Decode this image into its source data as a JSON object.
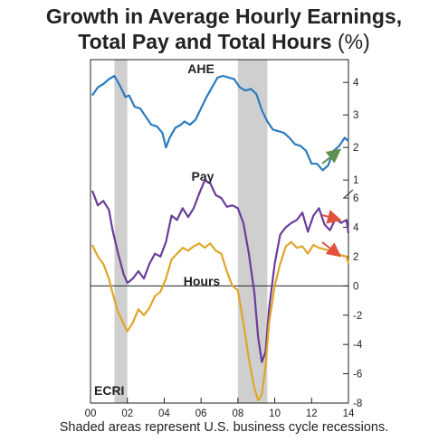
{
  "title_line1": "Growth in Average Hourly Earnings,",
  "title_line2": "Total Pay and Total Hours",
  "title_unit": "(%)",
  "footnote": "Shaded areas represent U.S. business cycle recessions.",
  "logo": "ECRI",
  "colors": {
    "ahe": "#2b7bbf",
    "pay": "#6a3d9a",
    "hours": "#e0a528",
    "recession": "#cfcfcf",
    "arrow_up": "#5f8f4e",
    "arrow_down": "#e2523b"
  },
  "chart_data": {
    "type": "line",
    "x_tick_labels": [
      "00",
      "02",
      "04",
      "06",
      "08",
      "10",
      "12",
      "14"
    ],
    "x_range": [
      2000,
      2014
    ],
    "recessions": [
      [
        2001.2,
        2001.9
      ],
      [
        2007.9,
        2009.5
      ]
    ],
    "panels": [
      {
        "name": "upper",
        "yrange": [
          0.7,
          4.7
        ],
        "yticks": [
          1,
          2,
          3,
          4
        ],
        "series": [
          {
            "name": "AHE",
            "color_key": "ahe",
            "x": [
              2000.0,
              2000.3,
              2000.6,
              2000.9,
              2001.2,
              2001.5,
              2001.8,
              2002.0,
              2002.3,
              2002.6,
              2002.9,
              2003.2,
              2003.5,
              2003.8,
              2004.0,
              2004.2,
              2004.5,
              2004.8,
              2005.0,
              2005.3,
              2005.6,
              2005.9,
              2006.2,
              2006.5,
              2006.8,
              2007.1,
              2007.4,
              2007.7,
              2008.0,
              2008.3,
              2008.6,
              2008.9,
              2009.2,
              2009.5,
              2009.8,
              2010.1,
              2010.4,
              2010.7,
              2011.0,
              2011.3,
              2011.6,
              2011.9,
              2012.2,
              2012.5,
              2012.8,
              2013.1,
              2013.4,
              2013.7,
              2013.9
            ],
            "y": [
              3.6,
              3.85,
              3.95,
              4.1,
              4.2,
              3.9,
              3.55,
              3.6,
              3.25,
              3.2,
              2.95,
              2.7,
              2.65,
              2.45,
              2.0,
              2.3,
              2.6,
              2.7,
              2.8,
              2.7,
              2.85,
              3.2,
              3.55,
              3.85,
              4.15,
              4.2,
              4.15,
              4.1,
              3.85,
              3.75,
              3.8,
              3.65,
              3.15,
              2.8,
              2.55,
              2.5,
              2.45,
              2.3,
              2.1,
              2.05,
              1.9,
              1.5,
              1.5,
              1.3,
              1.45,
              1.9,
              2.05,
              2.3,
              2.2
            ]
          }
        ]
      },
      {
        "name": "lower",
        "yrange": [
          -8,
          6.5
        ],
        "yticks": [
          -8,
          -6,
          -4,
          -2,
          0,
          2,
          4,
          6
        ],
        "series": [
          {
            "name": "Pay",
            "color_key": "pay",
            "x": [
              2000.0,
              2000.3,
              2000.6,
              2000.9,
              2001.1,
              2001.4,
              2001.7,
              2001.9,
              2002.2,
              2002.5,
              2002.8,
              2003.1,
              2003.4,
              2003.7,
              2004.0,
              2004.3,
              2004.6,
              2004.9,
              2005.2,
              2005.5,
              2005.8,
              2006.1,
              2006.4,
              2006.7,
              2007.0,
              2007.3,
              2007.6,
              2007.9,
              2008.2,
              2008.5,
              2008.8,
              2009.0,
              2009.2,
              2009.4,
              2009.6,
              2009.9,
              2010.2,
              2010.5,
              2010.8,
              2011.1,
              2011.4,
              2011.7,
              2012.0,
              2012.3,
              2012.6,
              2012.9,
              2013.2,
              2013.5,
              2013.8,
              2013.9
            ],
            "y": [
              6.5,
              5.5,
              5.8,
              5.2,
              3.8,
              2.2,
              0.8,
              0.2,
              0.5,
              1.0,
              0.5,
              1.5,
              2.2,
              2.0,
              3.0,
              4.8,
              4.5,
              5.3,
              4.7,
              5.3,
              6.3,
              7.2,
              7.0,
              6.2,
              6.0,
              5.4,
              5.5,
              5.3,
              4.3,
              2.2,
              -0.5,
              -3.5,
              -5.2,
              -4.5,
              -1.5,
              1.5,
              3.5,
              4.0,
              4.3,
              4.5,
              5.0,
              3.7,
              4.8,
              5.3,
              4.2,
              3.8,
              4.6,
              4.3,
              4.5,
              3.6
            ]
          },
          {
            "name": "Hours",
            "color_key": "hours",
            "x": [
              2000.0,
              2000.3,
              2000.6,
              2000.9,
              2001.1,
              2001.4,
              2001.7,
              2001.9,
              2002.2,
              2002.5,
              2002.8,
              2003.1,
              2003.4,
              2003.7,
              2004.0,
              2004.3,
              2004.6,
              2004.9,
              2005.2,
              2005.5,
              2005.8,
              2006.1,
              2006.4,
              2006.7,
              2007.0,
              2007.3,
              2007.6,
              2007.9,
              2008.2,
              2008.5,
              2008.8,
              2009.0,
              2009.2,
              2009.4,
              2009.6,
              2009.9,
              2010.2,
              2010.5,
              2010.8,
              2011.1,
              2011.4,
              2011.7,
              2012.0,
              2012.3,
              2012.6,
              2012.9,
              2013.2,
              2013.5,
              2013.8,
              2013.9
            ],
            "y": [
              2.8,
              2.0,
              1.5,
              0.5,
              -0.5,
              -1.8,
              -2.6,
              -3.1,
              -2.5,
              -1.6,
              -2.0,
              -1.5,
              -0.7,
              -0.4,
              0.5,
              1.8,
              2.2,
              2.6,
              2.4,
              2.7,
              2.9,
              2.6,
              2.9,
              2.4,
              2.2,
              1.0,
              0.0,
              -0.3,
              -2.5,
              -5.0,
              -7.0,
              -7.8,
              -7.4,
              -5.5,
              -2.5,
              0.0,
              1.5,
              2.7,
              3.0,
              2.6,
              2.7,
              2.2,
              2.8,
              2.6,
              2.5,
              2.4,
              2.3,
              2.1,
              2.0,
              1.5
            ]
          }
        ]
      }
    ],
    "annotations": [
      "AHE",
      "Pay",
      "Hours"
    ]
  }
}
